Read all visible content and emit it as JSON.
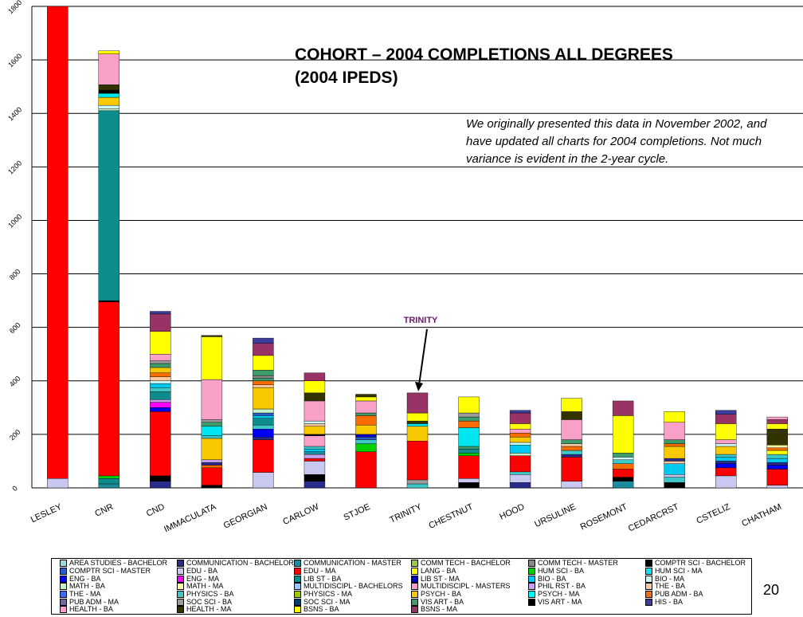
{
  "title": "COHORT – 2004 COMPLETIONS ALL DEGREES\n(2004 IPEDS)",
  "note": "We originally presented this data in November 2002, and have updated all charts for 2004 completions.  Not much variance is evident in the 2-year cycle.",
  "page_number": "20",
  "legend": [
    {
      "name": "AREA STUDIES - BACHELOR",
      "color": "#9ed8e0"
    },
    {
      "name": "COMMUNICATION - BACHELOR",
      "color": "#2a2a8c"
    },
    {
      "name": "COMMUNICATION - MASTER",
      "color": "#1c8c9c"
    },
    {
      "name": "COMM TECH - BACHELOR",
      "color": "#9ccc3a"
    },
    {
      "name": "COMM TECH - MASTER",
      "color": "#888888"
    },
    {
      "name": "COMPTR SCI - BACHELOR",
      "color": "#000000"
    },
    {
      "name": "COMPTR SCI - MASTER",
      "color": "#2a5cc8"
    },
    {
      "name": "EDU - BA",
      "color": "#c8c8f0"
    },
    {
      "name": "EDU - MA",
      "color": "#ff0000"
    },
    {
      "name": "LANG - BA",
      "color": "#ffff00"
    },
    {
      "name": "HUM SCI - BA",
      "color": "#00d000"
    },
    {
      "name": "HUM SCI - MA",
      "color": "#00e6f0"
    },
    {
      "name": "ENG - BA",
      "color": "#0000f0"
    },
    {
      "name": "ENG - MA",
      "color": "#ff00ff"
    },
    {
      "name": "LIB ST - BA",
      "color": "#0c8c8c"
    },
    {
      "name": "LIB ST - MA",
      "color": "#0000c8"
    },
    {
      "name": "BIO - BA",
      "color": "#00c8f0"
    },
    {
      "name": "BIO - MA",
      "color": "#c8f8f8"
    },
    {
      "name": "MATH - BA",
      "color": "#c8f0c8"
    },
    {
      "name": "MATH - MA",
      "color": "#ffffa0"
    },
    {
      "name": "MULTIDISCIPL - BACHELORS",
      "color": "#9cc8f8"
    },
    {
      "name": "MULTIDISCIPL - MASTERS",
      "color": "#f8a0c8"
    },
    {
      "name": "PHIL RST - BA",
      "color": "#c8a0f0"
    },
    {
      "name": "THE - BA",
      "color": "#f8c8a0"
    },
    {
      "name": "THE - MA",
      "color": "#3c6cf8"
    },
    {
      "name": "PHYSICS - BA",
      "color": "#3cc8c8"
    },
    {
      "name": "PHYSICS - MA",
      "color": "#9cc800"
    },
    {
      "name": "PSYCH - BA",
      "color": "#f8c800"
    },
    {
      "name": "PSYCH - MA",
      "color": "#00f8f8"
    },
    {
      "name": "PUB ADM - BA",
      "color": "#f86c00"
    },
    {
      "name": "PUB ADM - MA",
      "color": "#6c6c9c"
    },
    {
      "name": "SOC SCI - BA",
      "color": "#9c9c9c"
    },
    {
      "name": "SOC SCI - MA",
      "color": "#003c6c"
    },
    {
      "name": "VIS ART - BA",
      "color": "#3c9c6c"
    },
    {
      "name": "VIS ART - MA",
      "color": "#000000"
    },
    {
      "name": "HIS - BA",
      "color": "#3c3c9c"
    },
    {
      "name": "HEALTH - BA",
      "color": "#f8a0c8"
    },
    {
      "name": "HEALTH - MA",
      "color": "#333300"
    },
    {
      "name": "BSNS - BA",
      "color": "#ffff00"
    },
    {
      "name": "BSNS - MA",
      "color": "#993366"
    }
  ],
  "chart_data": {
    "type": "bar",
    "stacked": true,
    "categories": [
      "LESLEY",
      "CNR",
      "CND",
      "IMMACULATA",
      "GEORGIAN",
      "CARLOW",
      "STJOE",
      "TRINITY",
      "CHESTNUT",
      "HOOD",
      "URSULINE",
      "ROSEMONT",
      "CEDARCRST",
      "CSTELIZ",
      "CHATHAM"
    ],
    "ylim": [
      0,
      1800
    ],
    "yticks": [
      0,
      200,
      400,
      600,
      800,
      1000,
      1200,
      1400,
      1600,
      1800
    ],
    "grid": true,
    "annotation": {
      "text": "TRINITY",
      "category": "TRINITY",
      "color": "#6a1b6a"
    },
    "bars": [
      [
        {
          "s": "EDU - BA",
          "v": 35
        },
        {
          "s": "EDU - MA",
          "v": 1785
        }
      ],
      [
        {
          "s": "COMMUNICATION - MASTER",
          "v": 15
        },
        {
          "s": "LIB ST - BA",
          "v": 20
        },
        {
          "s": "HUM SCI - BA",
          "v": 10
        },
        {
          "s": "EDU - MA",
          "v": 650
        },
        {
          "s": "COMPTR SCI - BACHELOR",
          "v": 5
        },
        {
          "s": "LIB ST - BA",
          "v": 710
        },
        {
          "s": "MATH - BA",
          "v": 8
        },
        {
          "s": "BIO - MA",
          "v": 12
        },
        {
          "s": "PSYCH - BA",
          "v": 30
        },
        {
          "s": "HUM SCI - MA",
          "v": 15
        },
        {
          "s": "COMPTR SCI - BACHELOR",
          "v": 12
        },
        {
          "s": "HEALTH - MA",
          "v": 20
        },
        {
          "s": "HEALTH - BA",
          "v": 115
        },
        {
          "s": "LANG - BA",
          "v": 12
        }
      ],
      [
        {
          "s": "COMMUNICATION - BACHELOR",
          "v": 25
        },
        {
          "s": "COMPTR SCI - BACHELOR",
          "v": 20
        },
        {
          "s": "EDU - MA",
          "v": 240
        },
        {
          "s": "ENG - BA",
          "v": 15
        },
        {
          "s": "ENG - MA",
          "v": 20
        },
        {
          "s": "PHIL RST - BA",
          "v": 10
        },
        {
          "s": "LIB ST - BA",
          "v": 30
        },
        {
          "s": "PHYSICS - BA",
          "v": 15
        },
        {
          "s": "BIO - BA",
          "v": 15
        },
        {
          "s": "BIO - MA",
          "v": 10
        },
        {
          "s": "THE - BA",
          "v": 15
        },
        {
          "s": "PUB ADM - BA",
          "v": 15
        },
        {
          "s": "PSYCH - BA",
          "v": 20
        },
        {
          "s": "VIS ART - BA",
          "v": 15
        },
        {
          "s": "SOC SCI - BA",
          "v": 10
        },
        {
          "s": "HEALTH - BA",
          "v": 25
        },
        {
          "s": "LANG - BA",
          "v": 85
        },
        {
          "s": "BSNS - MA",
          "v": 65
        },
        {
          "s": "HIS - BA",
          "v": 10
        }
      ],
      [
        {
          "s": "COMPTR SCI - BACHELOR",
          "v": 10
        },
        {
          "s": "EDU - MA",
          "v": 65
        },
        {
          "s": "PUB ADM - BA",
          "v": 10
        },
        {
          "s": "COMMUNICATION - BACHELOR",
          "v": 10
        },
        {
          "s": "PHIL RST - BA",
          "v": 10
        },
        {
          "s": "PSYCH - BA",
          "v": 80
        },
        {
          "s": "PHYSICS - BA",
          "v": 10
        },
        {
          "s": "HUM SCI - MA",
          "v": 35
        },
        {
          "s": "VIS ART - BA",
          "v": 15
        },
        {
          "s": "SOC SCI - BA",
          "v": 10
        },
        {
          "s": "HEALTH - BA",
          "v": 150
        },
        {
          "s": "LANG - BA",
          "v": 160
        },
        {
          "s": "HEALTH - MA",
          "v": 5
        }
      ],
      [
        {
          "s": "EDU - BA",
          "v": 58
        },
        {
          "s": "EDU - MA",
          "v": 122
        },
        {
          "s": "COMMUNICATION - BACHELOR",
          "v": 10
        },
        {
          "s": "ENG - BA",
          "v": 30
        },
        {
          "s": "PHYSICS - BA",
          "v": 15
        },
        {
          "s": "LIB ST - BA",
          "v": 25
        },
        {
          "s": "BIO - BA",
          "v": 10
        },
        {
          "s": "COMPTR SCI - MASTER",
          "v": 10
        },
        {
          "s": "MATH - BA",
          "v": 15
        },
        {
          "s": "PSYCH - BA",
          "v": 80
        },
        {
          "s": "THE - BA",
          "v": 10
        },
        {
          "s": "PUB ADM - BA",
          "v": 15
        },
        {
          "s": "VIS ART - BA",
          "v": 10
        },
        {
          "s": "COMM TECH - MASTER",
          "v": 10
        },
        {
          "s": "VIS ART - BA",
          "v": 20
        },
        {
          "s": "LANG - BA",
          "v": 55
        },
        {
          "s": "BSNS - MA",
          "v": 45
        },
        {
          "s": "HIS - BA",
          "v": 20
        }
      ],
      [
        {
          "s": "COMMUNICATION - BACHELOR",
          "v": 25
        },
        {
          "s": "COMPTR SCI - BACHELOR",
          "v": 25
        },
        {
          "s": "EDU - BA",
          "v": 50
        },
        {
          "s": "EDU - MA",
          "v": 10
        },
        {
          "s": "PHIL RST - BA",
          "v": 15
        },
        {
          "s": "COMMUNICATION - MASTER",
          "v": 10
        },
        {
          "s": "BIO - BA",
          "v": 10
        },
        {
          "s": "PHYSICS - BA",
          "v": 10
        },
        {
          "s": "HEALTH - BA",
          "v": 40
        },
        {
          "s": "VIS ART - MA",
          "v": 5
        },
        {
          "s": "PSYCH - BA",
          "v": 30
        },
        {
          "s": "THE - BA",
          "v": 10
        },
        {
          "s": "BIO - MA",
          "v": 10
        },
        {
          "s": "HEALTH - BA",
          "v": 75
        },
        {
          "s": "HEALTH - MA",
          "v": 30
        },
        {
          "s": "LANG - BA",
          "v": 45
        },
        {
          "s": "BSNS - MA",
          "v": 30
        }
      ],
      [
        {
          "s": "EDU - MA",
          "v": 135
        },
        {
          "s": "HUM SCI - BA",
          "v": 30
        },
        {
          "s": "PHYSICS - BA",
          "v": 15
        },
        {
          "s": "COMPTR SCI - MASTER",
          "v": 10
        },
        {
          "s": "LIB ST - MA",
          "v": 10
        },
        {
          "s": "PSYCH - BA",
          "v": 35
        },
        {
          "s": "PUB ADM - BA",
          "v": 35
        },
        {
          "s": "VIS ART - BA",
          "v": 10
        },
        {
          "s": "HEALTH - BA",
          "v": 45
        },
        {
          "s": "LANG - BA",
          "v": 15
        },
        {
          "s": "HEALTH - MA",
          "v": 10
        }
      ],
      [
        {
          "s": "PHYSICS - BA",
          "v": 15
        },
        {
          "s": "SOC SCI - BA",
          "v": 15
        },
        {
          "s": "EDU - MA",
          "v": 145
        },
        {
          "s": "PSYCH - BA",
          "v": 55
        },
        {
          "s": "HUM SCI - MA",
          "v": 10
        },
        {
          "s": "HEALTH - MA",
          "v": 10
        },
        {
          "s": "LANG - BA",
          "v": 30
        },
        {
          "s": "BSNS - MA",
          "v": 75
        }
      ],
      [
        {
          "s": "COMPTR SCI - BACHELOR",
          "v": 20
        },
        {
          "s": "EDU - BA",
          "v": 15
        },
        {
          "s": "EDU - MA",
          "v": 85
        },
        {
          "s": "HUM SCI - BA",
          "v": 10
        },
        {
          "s": "LIB ST - BA",
          "v": 15
        },
        {
          "s": "VIS ART - BA",
          "v": 10
        },
        {
          "s": "HUM SCI - MA",
          "v": 70
        },
        {
          "s": "PUB ADM - BA",
          "v": 25
        },
        {
          "s": "VIS ART - BA",
          "v": 15
        },
        {
          "s": "SOC SCI - BA",
          "v": 15
        },
        {
          "s": "LANG - BA",
          "v": 60
        }
      ],
      [
        {
          "s": "COMMUNICATION - BACHELOR",
          "v": 20
        },
        {
          "s": "EDU - BA",
          "v": 30
        },
        {
          "s": "PHYSICS - BA",
          "v": 10
        },
        {
          "s": "EDU - MA",
          "v": 60
        },
        {
          "s": "MATH - BA",
          "v": 10
        },
        {
          "s": "BIO - BA",
          "v": 30
        },
        {
          "s": "BIO - MA",
          "v": 10
        },
        {
          "s": "PSYCH - BA",
          "v": 20
        },
        {
          "s": "PUB ADM - BA",
          "v": 15
        },
        {
          "s": "HEALTH - BA",
          "v": 15
        },
        {
          "s": "LANG - BA",
          "v": 20
        },
        {
          "s": "BSNS - MA",
          "v": 40
        },
        {
          "s": "HIS - BA",
          "v": 10
        }
      ],
      [
        {
          "s": "EDU - BA",
          "v": 25
        },
        {
          "s": "EDU - MA",
          "v": 90
        },
        {
          "s": "COMMUNICATION - BACHELOR",
          "v": 10
        },
        {
          "s": "PHYSICS - BA",
          "v": 15
        },
        {
          "s": "PUB ADM - BA",
          "v": 15
        },
        {
          "s": "THE - BA",
          "v": 10
        },
        {
          "s": "VIS ART - BA",
          "v": 15
        },
        {
          "s": "HEALTH - BA",
          "v": 75
        },
        {
          "s": "HEALTH - MA",
          "v": 30
        },
        {
          "s": "LANG - BA",
          "v": 50
        }
      ],
      [
        {
          "s": "COMMUNICATION - MASTER",
          "v": 25
        },
        {
          "s": "COMPTR SCI - BACHELOR",
          "v": 15
        },
        {
          "s": "EDU - MA",
          "v": 30
        },
        {
          "s": "PUB ADM - BA",
          "v": 20
        },
        {
          "s": "PHYSICS - BA",
          "v": 15
        },
        {
          "s": "BIO - MA",
          "v": 10
        },
        {
          "s": "VIS ART - BA",
          "v": 15
        },
        {
          "s": "LANG - BA",
          "v": 140
        },
        {
          "s": "BSNS - MA",
          "v": 55
        }
      ],
      [
        {
          "s": "COMPTR SCI - BACHELOR",
          "v": 20
        },
        {
          "s": "PHYSICS - BA",
          "v": 20
        },
        {
          "s": "EDU - BA",
          "v": 10
        },
        {
          "s": "BIO - BA",
          "v": 40
        },
        {
          "s": "THE - BA",
          "v": 10
        },
        {
          "s": "COMMUNICATION - BACHELOR",
          "v": 10
        },
        {
          "s": "PSYCH - BA",
          "v": 45
        },
        {
          "s": "PUB ADM - BA",
          "v": 10
        },
        {
          "s": "VIS ART - BA",
          "v": 15
        },
        {
          "s": "HEALTH - BA",
          "v": 65
        },
        {
          "s": "LANG - BA",
          "v": 40
        }
      ],
      [
        {
          "s": "EDU - BA",
          "v": 45
        },
        {
          "s": "EDU - MA",
          "v": 30
        },
        {
          "s": "ENG - BA",
          "v": 15
        },
        {
          "s": "COMMUNICATION - BACHELOR",
          "v": 10
        },
        {
          "s": "BIO - BA",
          "v": 15
        },
        {
          "s": "PHYSICS - BA",
          "v": 10
        },
        {
          "s": "PSYCH - BA",
          "v": 30
        },
        {
          "s": "BIO - MA",
          "v": 10
        },
        {
          "s": "HEALTH - BA",
          "v": 15
        },
        {
          "s": "LANG - BA",
          "v": 60
        },
        {
          "s": "BSNS - MA",
          "v": 35
        },
        {
          "s": "HIS - BA",
          "v": 15
        }
      ],
      [
        {
          "s": "EDU - BA",
          "v": 10
        },
        {
          "s": "EDU - MA",
          "v": 60
        },
        {
          "s": "ENG - BA",
          "v": 15
        },
        {
          "s": "COMMUNICATION - BACHELOR",
          "v": 10
        },
        {
          "s": "BIO - BA",
          "v": 15
        },
        {
          "s": "PHYSICS - BA",
          "v": 15
        },
        {
          "s": "LANG - BA",
          "v": 15
        },
        {
          "s": "PUB ADM - BA",
          "v": 10
        },
        {
          "s": "MATH - MA",
          "v": 10
        },
        {
          "s": "HEALTH - MA",
          "v": 60
        },
        {
          "s": "LANG - BA",
          "v": 20
        },
        {
          "s": "BSNS - MA",
          "v": 15
        },
        {
          "s": "HEALTH - BA",
          "v": 10
        }
      ]
    ]
  }
}
